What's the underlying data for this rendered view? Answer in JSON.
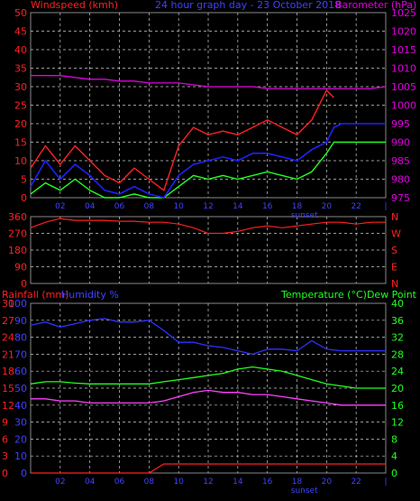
{
  "header": {
    "left_title": "Windspeed (kmh)",
    "center_title": "24 hour graph day - 23 October 2018",
    "right_title": "Barometer (hPa)"
  },
  "colors": {
    "background": "#000000",
    "grid": "#cccccc",
    "wind_gust": "#ff2020",
    "wind_avg": "#2020ff",
    "wind_green": "#20ff20",
    "barometer": "#e000e0",
    "direction": "#ff2020",
    "rain_axis": "#ff2020",
    "humidity_axis": "#4040ff",
    "temperature_axis": "#20ff20",
    "dewpoint_label": "#ff00ff",
    "humidity_line": "#3030ff",
    "temperature_line": "#20ff20",
    "dewpoint_line": "#ff40ff",
    "rain_line": "#ff2020",
    "time_labels": "#4040ff"
  },
  "chart_data": [
    {
      "type": "line",
      "panel": "wind_barometer",
      "title": "24 hour graph day - 23 October 2018",
      "ylabel_left": "Windspeed (kmh)",
      "ylabel_right": "Barometer (hPa)",
      "ylim_left": [
        0,
        50
      ],
      "ylim_right": [
        975,
        1025
      ],
      "yticks_left": [
        "0",
        "5",
        "10",
        "15",
        "20",
        "25",
        "30",
        "35",
        "40",
        "45",
        "50"
      ],
      "yticks_right": [
        "975",
        "980",
        "985",
        "990",
        "995",
        "1000",
        "1005",
        "1010",
        "1015",
        "1020",
        "1025"
      ],
      "xticks": [
        "02",
        "04",
        "06",
        "08",
        "10",
        "12",
        "14",
        "16",
        "18",
        "20",
        "22",
        "|"
      ],
      "annotation": "sunset",
      "x_hours": [
        0,
        1,
        2,
        3,
        4,
        5,
        6,
        7,
        8,
        9,
        10,
        11,
        12,
        13,
        14,
        15,
        16,
        17,
        18,
        19,
        20,
        20.5,
        21,
        22,
        23,
        24
      ],
      "series": [
        {
          "values": [
            1008,
            1008,
            1008,
            1007.5,
            1007,
            1007,
            1006.5,
            1006.5,
            1006,
            1006,
            1006,
            1005.5,
            1005,
            1005,
            1005,
            1005,
            1004.5,
            1004.5,
            1004.5,
            1004.5,
            1004.5,
            1004.5,
            1004.5,
            1004.5,
            1004.5,
            1005
          ]
        },
        {
          "values": [
            3,
            10,
            5,
            9,
            6,
            2,
            1,
            3,
            1,
            0,
            6,
            9,
            10,
            11,
            10,
            12,
            12,
            11,
            10,
            13,
            15,
            19,
            20,
            20,
            20,
            20
          ]
        },
        {
          "values": [
            8,
            14,
            9,
            14,
            10,
            6,
            4,
            8,
            5,
            2,
            14,
            19,
            17,
            18,
            17,
            19,
            21,
            19,
            17,
            21,
            29,
            27,
            null,
            null,
            null,
            null
          ]
        },
        {
          "values": [
            1,
            4,
            2,
            5,
            2,
            0,
            0,
            1,
            0,
            0,
            3,
            6,
            5,
            6,
            5,
            6,
            7,
            6,
            5,
            7,
            12,
            15,
            15,
            15,
            15,
            15
          ]
        }
      ]
    },
    {
      "type": "line",
      "panel": "wind_direction",
      "ylim": [
        0,
        360
      ],
      "yticks_left": [
        "0",
        "90",
        "180",
        "270",
        "360"
      ],
      "yticks_right": [
        "N",
        "E",
        "S",
        "W",
        "N"
      ],
      "x_hours": [
        0,
        1,
        1.5,
        2,
        3,
        4,
        5,
        6,
        7,
        8,
        9,
        10,
        11,
        12,
        13,
        14,
        15,
        16,
        17,
        18,
        19,
        20,
        21,
        22,
        23,
        24
      ],
      "series": [
        {
          "values": [
            300,
            330,
            340,
            350,
            340,
            340,
            340,
            335,
            335,
            330,
            330,
            320,
            300,
            270,
            270,
            280,
            300,
            310,
            300,
            310,
            320,
            330,
            330,
            320,
            330,
            330
          ]
        }
      ]
    },
    {
      "type": "line",
      "panel": "rain_humidity_temperature",
      "ylabel_left_1": "Rainfall (mm)",
      "ylabel_left_2": "Humidity %",
      "ylabel_right": "Temperature (°C)Dew Point",
      "ylim_rain": [
        0,
        30
      ],
      "ylim_humidity": [
        0,
        100
      ],
      "ylim_temperature": [
        0,
        40
      ],
      "yticks_rain": [
        "0",
        "3",
        "6",
        "9",
        "12",
        "15",
        "18",
        "21",
        "24",
        "27",
        "30"
      ],
      "yticks_humidity": [
        "0",
        "10",
        "20",
        "30",
        "40",
        "50",
        "60",
        "70",
        "80",
        "90",
        "100"
      ],
      "yticks_temperature": [
        "0",
        "4",
        "8",
        "12",
        "16",
        "20",
        "24",
        "28",
        "32",
        "36",
        "40"
      ],
      "xticks": [
        "02",
        "04",
        "06",
        "08",
        "10",
        "12",
        "14",
        "16",
        "18",
        "20",
        "22",
        "|"
      ],
      "annotation": "sunset",
      "x_hours": [
        0,
        1,
        2,
        3,
        4,
        5,
        6,
        7,
        8,
        9,
        10,
        11,
        12,
        13,
        14,
        15,
        16,
        17,
        18,
        19,
        20,
        21,
        22,
        23,
        24
      ],
      "series": [
        {
          "name": "Humidity %",
          "values": [
            87,
            89,
            86,
            88,
            90,
            91,
            89,
            89,
            90,
            84,
            77,
            77,
            75,
            74,
            72,
            70,
            73,
            73,
            72,
            78,
            73,
            72,
            72,
            72,
            72
          ]
        },
        {
          "name": "Temperature",
          "values": [
            21,
            21.5,
            21.5,
            21.2,
            21,
            21,
            21,
            21,
            21,
            21.5,
            22,
            22.5,
            23,
            23.5,
            24.5,
            25,
            24.5,
            24,
            23,
            22,
            21,
            20.5,
            20,
            20,
            20
          ]
        },
        {
          "name": "Dew Point",
          "values": [
            17.5,
            17.5,
            17,
            17,
            16.5,
            16.5,
            16.5,
            16.5,
            16.5,
            17,
            18,
            19,
            19.5,
            19,
            19,
            18.5,
            18.5,
            18,
            17.5,
            17,
            16.5,
            16,
            16,
            16,
            16
          ]
        },
        {
          "name": "Rainfall",
          "values": [
            0,
            0,
            0,
            0,
            0,
            0,
            0,
            0,
            0,
            1.6,
            1.6,
            1.6,
            1.6,
            1.6,
            1.6,
            1.6,
            1.6,
            1.6,
            1.6,
            1.6,
            1.6,
            1.6,
            1.6,
            1.6,
            1.6
          ]
        }
      ]
    }
  ]
}
